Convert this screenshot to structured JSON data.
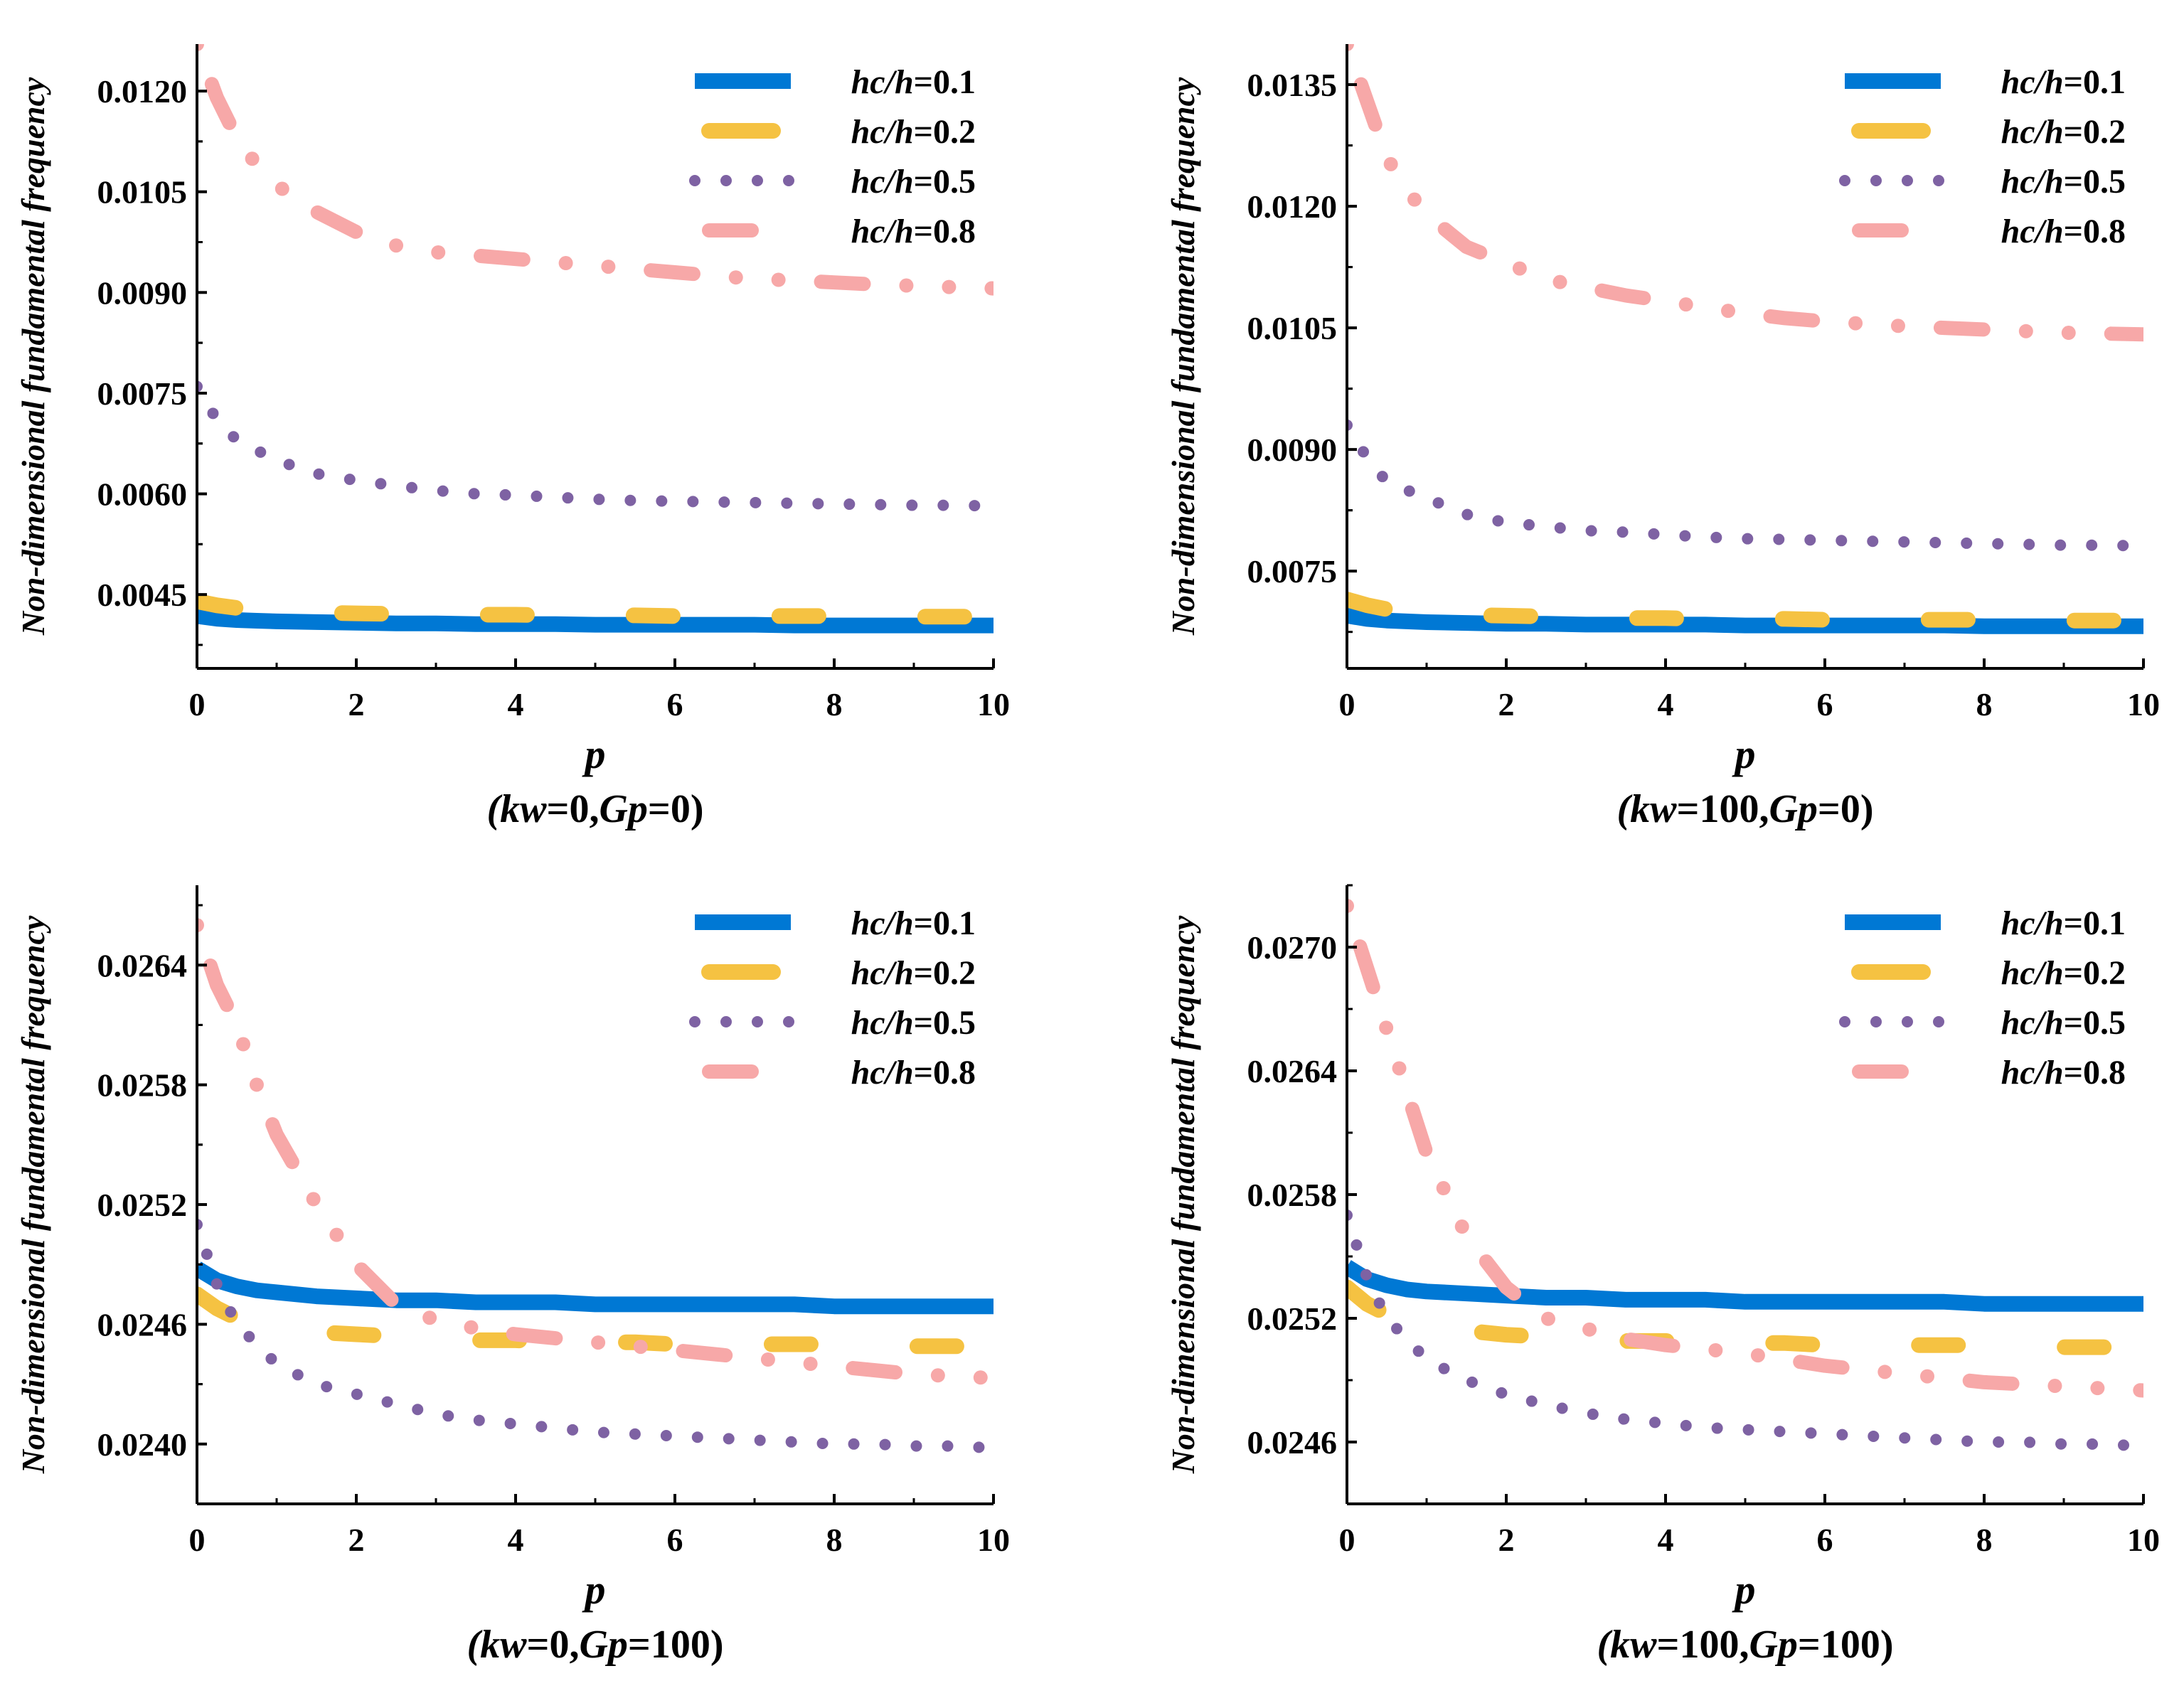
{
  "chart_data": [
    {
      "type": "line",
      "title": "",
      "ylabel": "Non-dimensional fundamental frequency",
      "xlabel": "p",
      "subtitle_parts": [
        "(",
        "kw",
        "=0,",
        "Gp",
        "=0)"
      ],
      "xlim": [
        0,
        10
      ],
      "ylim": [
        0.0034,
        0.0127
      ],
      "xticks": [
        0,
        2,
        4,
        6,
        8,
        10
      ],
      "xtick_labels": [
        "0",
        "2",
        "4",
        "6",
        "8",
        "10"
      ],
      "yticks": [
        0.0045,
        0.006,
        0.0075,
        0.009,
        0.0105,
        0.012
      ],
      "ytick_labels": [
        "0.0045",
        "0.0060",
        "0.0075",
        "0.0090",
        "0.0105",
        "0.0120"
      ],
      "legend_position": "top-right",
      "x": [
        0,
        0.25,
        0.5,
        0.75,
        1,
        1.5,
        2,
        2.5,
        3,
        3.5,
        4,
        4.5,
        5,
        5.5,
        6,
        6.5,
        7,
        7.5,
        8,
        8.5,
        9,
        9.5,
        10
      ],
      "series": [
        {
          "name": "hc/h=0.1",
          "label_pre": "hc/h",
          "label_post": "=0.1",
          "style": "solid",
          "color": "#0078D4",
          "values": [
            0.00418,
            0.00414,
            0.00412,
            0.00411,
            0.0041,
            0.00409,
            0.00408,
            0.00407,
            0.00407,
            0.00406,
            0.00406,
            0.00406,
            0.00405,
            0.00405,
            0.00405,
            0.00405,
            0.00405,
            0.00404,
            0.00404,
            0.00404,
            0.00404,
            0.00404,
            0.00404
          ]
        },
        {
          "name": "hc/h=0.2",
          "label_pre": "hc/h",
          "label_post": "=0.2",
          "style": "dash",
          "color": "#F5C242",
          "values": [
            0.0044,
            0.00434,
            0.0043,
            0.00427,
            0.00425,
            0.00423,
            0.00422,
            0.00421,
            0.0042,
            0.0042,
            0.0042,
            0.00419,
            0.00419,
            0.00419,
            0.00418,
            0.00418,
            0.00418,
            0.00418,
            0.00418,
            0.00417,
            0.00417,
            0.00417,
            0.00417
          ]
        },
        {
          "name": "hc/h=0.5",
          "label_pre": "hc/h",
          "label_post": "=0.5",
          "style": "dot",
          "color": "#7E62A3",
          "values": [
            0.0076,
            0.0071,
            0.0068,
            0.00665,
            0.0065,
            0.0063,
            0.0062,
            0.00612,
            0.00605,
            0.006,
            0.00598,
            0.00595,
            0.00592,
            0.0059,
            0.00589,
            0.00588,
            0.00587,
            0.00586,
            0.00585,
            0.00584,
            0.00583,
            0.00583,
            0.00582
          ]
        },
        {
          "name": "hc/h=0.8",
          "label_pre": "hc/h",
          "label_post": "=0.8",
          "style": "dashdot",
          "color": "#F7A8A8",
          "values": [
            0.0127,
            0.0119,
            0.0113,
            0.0109,
            0.0106,
            0.0102,
            0.0099,
            0.0097,
            0.0096,
            0.00955,
            0.0095,
            0.00945,
            0.0094,
            0.00935,
            0.0093,
            0.00925,
            0.0092,
            0.00918,
            0.00915,
            0.00912,
            0.0091,
            0.00908,
            0.00906
          ]
        }
      ]
    },
    {
      "type": "line",
      "title": "",
      "ylabel": "Non-dimensional fundamental frequency",
      "xlabel": "p",
      "subtitle_parts": [
        "(",
        "kw",
        "=100,",
        "Gp",
        "=0)"
      ],
      "xlim": [
        0,
        10
      ],
      "ylim": [
        0.0063,
        0.014
      ],
      "xticks": [
        0,
        2,
        4,
        6,
        8,
        10
      ],
      "xtick_labels": [
        "0",
        "2",
        "4",
        "6",
        "8",
        "10"
      ],
      "yticks": [
        0.0075,
        0.009,
        0.0105,
        0.012,
        0.0135
      ],
      "ytick_labels": [
        "0.0075",
        "0.0090",
        "0.0105",
        "0.0120",
        "0.0135"
      ],
      "legend_position": "top-right",
      "x": [
        0,
        0.25,
        0.5,
        0.75,
        1,
        1.5,
        2,
        2.5,
        3,
        3.5,
        4,
        4.5,
        5,
        5.5,
        6,
        6.5,
        7,
        7.5,
        8,
        8.5,
        9,
        9.5,
        10
      ],
      "series": [
        {
          "name": "hc/h=0.1",
          "label_pre": "hc/h",
          "label_post": "=0.1",
          "style": "solid",
          "color": "#0078D4",
          "values": [
            0.00695,
            0.00691,
            0.00689,
            0.00688,
            0.00687,
            0.00686,
            0.00685,
            0.00685,
            0.00684,
            0.00684,
            0.00684,
            0.00684,
            0.00683,
            0.00683,
            0.00683,
            0.00683,
            0.00683,
            0.00683,
            0.00682,
            0.00682,
            0.00682,
            0.00682,
            0.00682
          ]
        },
        {
          "name": "hc/h=0.2",
          "label_pre": "hc/h",
          "label_post": "=0.2",
          "style": "dash",
          "color": "#F5C242",
          "values": [
            0.00715,
            0.00708,
            0.00703,
            0.007,
            0.00698,
            0.00696,
            0.00695,
            0.00694,
            0.00693,
            0.00692,
            0.00692,
            0.00691,
            0.00691,
            0.00691,
            0.0069,
            0.0069,
            0.0069,
            0.0069,
            0.0069,
            0.00689,
            0.00689,
            0.00689,
            0.00689
          ]
        },
        {
          "name": "hc/h=0.5",
          "label_pre": "hc/h",
          "label_post": "=0.5",
          "style": "dot",
          "color": "#7E62A3",
          "values": [
            0.0093,
            0.0089,
            0.0086,
            0.0085,
            0.0084,
            0.0082,
            0.0081,
            0.00805,
            0.008,
            0.00798,
            0.00795,
            0.00792,
            0.0079,
            0.00789,
            0.00788,
            0.00787,
            0.00786,
            0.00785,
            0.00784,
            0.00783,
            0.00782,
            0.00782,
            0.00781
          ]
        },
        {
          "name": "hc/h=0.8",
          "label_pre": "hc/h",
          "label_post": "=0.8",
          "style": "dashdot",
          "color": "#F7A8A8",
          "values": [
            0.014,
            0.0133,
            0.0126,
            0.0122,
            0.0119,
            0.0115,
            0.0113,
            0.0111,
            0.011,
            0.0109,
            0.01083,
            0.01075,
            0.01068,
            0.01062,
            0.01058,
            0.01055,
            0.01052,
            0.0105,
            0.01048,
            0.01046,
            0.01044,
            0.01043,
            0.01042
          ]
        }
      ]
    },
    {
      "type": "line",
      "title": "",
      "ylabel": "Non-dimensional fundamental frequency",
      "xlabel": "p",
      "subtitle_parts": [
        "(",
        "kw",
        "=0,",
        "Gp",
        "=100)"
      ],
      "xlim": [
        0,
        10
      ],
      "ylim": [
        0.0237,
        0.0268
      ],
      "xticks": [
        0,
        2,
        4,
        6,
        8,
        10
      ],
      "xtick_labels": [
        "0",
        "2",
        "4",
        "6",
        "8",
        "10"
      ],
      "yticks": [
        0.024,
        0.0246,
        0.0252,
        0.0258,
        0.0264
      ],
      "ytick_labels": [
        "0.0240",
        "0.0246",
        "0.0252",
        "0.0258",
        "0.0264"
      ],
      "legend_position": "top-right",
      "x": [
        0,
        0.25,
        0.5,
        0.75,
        1,
        1.5,
        2,
        2.5,
        3,
        3.5,
        4,
        4.5,
        5,
        5.5,
        6,
        6.5,
        7,
        7.5,
        8,
        8.5,
        9,
        9.5,
        10
      ],
      "series": [
        {
          "name": "hc/h=0.1",
          "label_pre": "hc/h",
          "label_post": "=0.1",
          "style": "solid",
          "color": "#0078D4",
          "values": [
            0.02488,
            0.02482,
            0.02479,
            0.02477,
            0.02476,
            0.02474,
            0.02473,
            0.02472,
            0.02472,
            0.02471,
            0.02471,
            0.02471,
            0.0247,
            0.0247,
            0.0247,
            0.0247,
            0.0247,
            0.0247,
            0.02469,
            0.02469,
            0.02469,
            0.02469,
            0.02469
          ]
        },
        {
          "name": "hc/h=0.2",
          "label_pre": "hc/h",
          "label_post": "=0.2",
          "style": "dash",
          "color": "#F5C242",
          "values": [
            0.02475,
            0.02468,
            0.02463,
            0.0246,
            0.02458,
            0.02456,
            0.02455,
            0.02454,
            0.02453,
            0.02452,
            0.02452,
            0.02451,
            0.02451,
            0.02451,
            0.0245,
            0.0245,
            0.0245,
            0.0245,
            0.0245,
            0.02449,
            0.02449,
            0.02449,
            0.02449
          ]
        },
        {
          "name": "hc/h=0.5",
          "label_pre": "hc/h",
          "label_post": "=0.5",
          "style": "dot",
          "color": "#7E62A3",
          "values": [
            0.0251,
            0.0248,
            0.0246,
            0.0245,
            0.0244,
            0.0243,
            0.02425,
            0.0242,
            0.02415,
            0.02412,
            0.0241,
            0.02408,
            0.02406,
            0.02405,
            0.02404,
            0.02403,
            0.02402,
            0.02401,
            0.024,
            0.024,
            0.02399,
            0.02399,
            0.02398
          ]
        },
        {
          "name": "hc/h=0.8",
          "label_pre": "hc/h",
          "label_post": "=0.8",
          "style": "dashdot",
          "color": "#F7A8A8",
          "values": [
            0.0266,
            0.0263,
            0.0261,
            0.0258,
            0.02555,
            0.0252,
            0.0249,
            0.0247,
            0.02462,
            0.02458,
            0.02455,
            0.02453,
            0.02451,
            0.02449,
            0.02447,
            0.02445,
            0.02443,
            0.02441,
            0.02439,
            0.02437,
            0.02435,
            0.02434,
            0.02433
          ]
        }
      ]
    },
    {
      "type": "line",
      "title": "",
      "ylabel": "Non-dimensional fundamental frequency",
      "xlabel": "p",
      "subtitle_parts": [
        "(",
        "kw",
        "=100,",
        "Gp",
        "=100)"
      ],
      "xlim": [
        0,
        10
      ],
      "ylim": [
        0.0243,
        0.0273
      ],
      "xticks": [
        0,
        2,
        4,
        6,
        8,
        10
      ],
      "xtick_labels": [
        "0",
        "2",
        "4",
        "6",
        "8",
        "10"
      ],
      "yticks": [
        0.0246,
        0.0252,
        0.0258,
        0.0264,
        0.027
      ],
      "ytick_labels": [
        "0.0246",
        "0.0252",
        "0.0258",
        "0.0264",
        "0.0270"
      ],
      "legend_position": "top-right",
      "x": [
        0,
        0.25,
        0.5,
        0.75,
        1,
        1.5,
        2,
        2.5,
        3,
        3.5,
        4,
        4.5,
        5,
        5.5,
        6,
        6.5,
        7,
        7.5,
        8,
        8.5,
        9,
        9.5,
        10
      ],
      "series": [
        {
          "name": "hc/h=0.1",
          "label_pre": "hc/h",
          "label_post": "=0.1",
          "style": "solid",
          "color": "#0078D4",
          "values": [
            0.02545,
            0.02539,
            0.02536,
            0.02534,
            0.02533,
            0.02532,
            0.02531,
            0.0253,
            0.0253,
            0.02529,
            0.02529,
            0.02529,
            0.02528,
            0.02528,
            0.02528,
            0.02528,
            0.02528,
            0.02528,
            0.02527,
            0.02527,
            0.02527,
            0.02527,
            0.02527
          ]
        },
        {
          "name": "hc/h=0.2",
          "label_pre": "hc/h",
          "label_post": "=0.2",
          "style": "dash",
          "color": "#F5C242",
          "values": [
            0.02535,
            0.02527,
            0.02522,
            0.02518,
            0.02516,
            0.02514,
            0.02512,
            0.02511,
            0.0251,
            0.02509,
            0.02509,
            0.02508,
            0.02508,
            0.02508,
            0.02507,
            0.02507,
            0.02507,
            0.02507,
            0.02507,
            0.02506,
            0.02506,
            0.02506,
            0.02506
          ]
        },
        {
          "name": "hc/h=0.5",
          "label_pre": "hc/h",
          "label_post": "=0.5",
          "style": "dot",
          "color": "#7E62A3",
          "values": [
            0.0257,
            0.0254,
            0.0252,
            0.0251,
            0.025,
            0.0249,
            0.02483,
            0.02478,
            0.02474,
            0.02471,
            0.02469,
            0.02467,
            0.02466,
            0.02465,
            0.02464,
            0.02463,
            0.02462,
            0.02461,
            0.0246,
            0.0246,
            0.02459,
            0.02459,
            0.02458
          ]
        },
        {
          "name": "hc/h=0.8",
          "label_pre": "hc/h",
          "label_post": "=0.8",
          "style": "dashdot",
          "color": "#F7A8A8",
          "values": [
            0.0272,
            0.0269,
            0.0266,
            0.0263,
            0.026,
            0.0256,
            0.02535,
            0.0252,
            0.02515,
            0.0251,
            0.02507,
            0.02505,
            0.02503,
            0.025,
            0.02497,
            0.02495,
            0.02493,
            0.02491,
            0.02489,
            0.02488,
            0.02487,
            0.02486,
            0.02485
          ]
        }
      ]
    }
  ]
}
